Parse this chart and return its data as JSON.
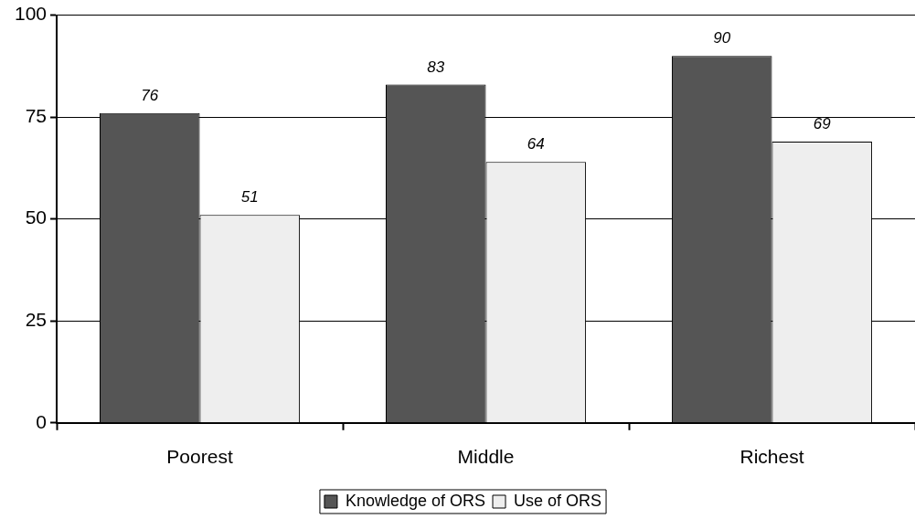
{
  "chart_data": {
    "type": "bar",
    "categories": [
      "Poorest",
      "Middle",
      "Richest"
    ],
    "series": [
      {
        "name": "Knowledge of ORS",
        "color": "#555555",
        "values": [
          76,
          83,
          90
        ]
      },
      {
        "name": "Use of ORS",
        "color": "#eeeeee",
        "values": [
          51,
          64,
          69
        ]
      }
    ],
    "ylim": [
      0,
      100
    ],
    "yticks": [
      0,
      25,
      50,
      75,
      100
    ],
    "grid": "y",
    "legend": "bottom",
    "data_labels": true
  }
}
